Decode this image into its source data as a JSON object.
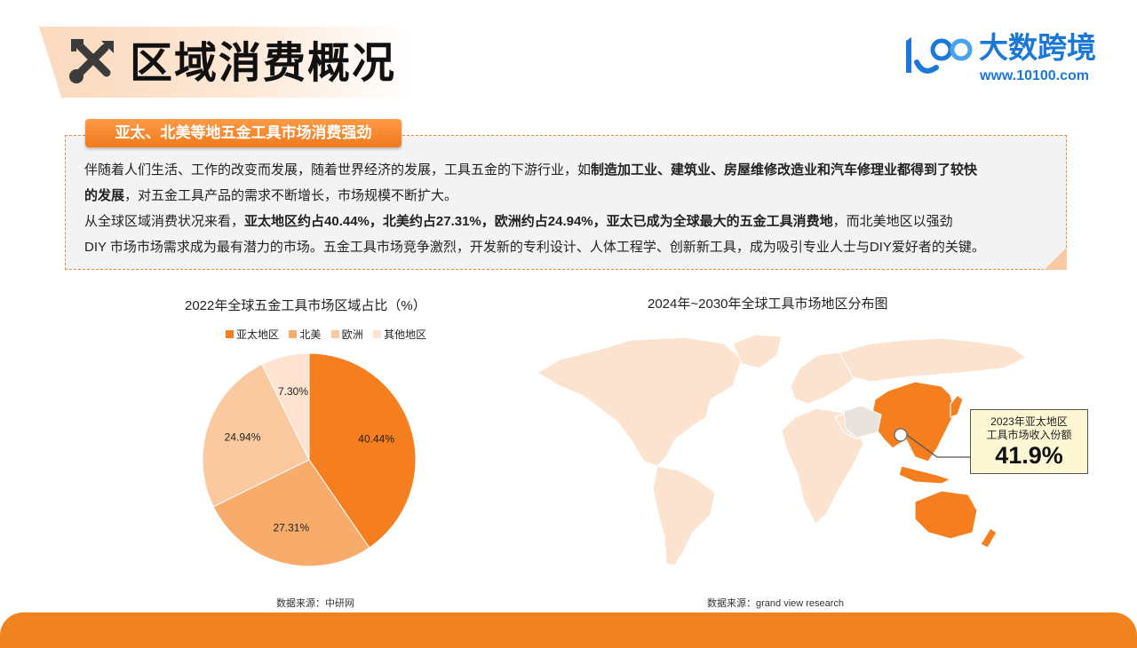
{
  "header": {
    "title": "区域消费概况",
    "icon": "tools-icon"
  },
  "logo": {
    "name": "大数跨境",
    "url": "www.10100.com",
    "brand_color": "#1b78d8"
  },
  "info_box": {
    "tag": "亚太、北美等地五金工具市场消费强劲",
    "p1_line1_a": "伴随着人们生活、工作的改变而发展，随着世界经济的发展，工具五金的下游行业，如",
    "p1_line1_b": "制造加工业、建筑业、房屋维修改造业和汽车修理业都得到了较快",
    "p1_line2_a": "的发展",
    "p1_line2_b": "，对五金工具产品的需求不断增长，市场规模不断扩大。",
    "p2_line1_a": "从全球区域消费状况来看，",
    "p2_line1_b": "亚太地区约占40.44%，北美约占27.31%，欧洲约占24.94%，亚太已成为全球最大的五金工具消费地",
    "p2_line1_c": "，而北美地区以强劲",
    "p2_line2": "DIY 市场市场需求成为最有潜力的市场。五金工具市场竞争激烈，开发新的专利设计、人体工程学、创新新工具，成为吸引专业人士与DIY爱好者的关键。"
  },
  "chart_data": [
    {
      "type": "pie",
      "title": "2022年全球五金工具市场区域占比（%）",
      "categories": [
        "亚太地区",
        "北美",
        "欧洲",
        "其他地区"
      ],
      "values": [
        40.44,
        27.31,
        24.94,
        7.3
      ],
      "labels": [
        "40.44%",
        "27.31%",
        "24.94%",
        "7.30%"
      ],
      "colors": [
        "#f57f1f",
        "#f7ac6b",
        "#fac9a0",
        "#fde3d0"
      ],
      "legend_position": "top",
      "source": "数据来源：中研网"
    },
    {
      "type": "map",
      "title": "2024年~2030年全球工具市场地区分布图",
      "highlight_region": "亚太地区",
      "highlight_color": "#f57f1f",
      "base_color": "#fbe3cf",
      "callout_label_line1": "2023年亚太地区",
      "callout_label_line2": "工具市场收入份额",
      "callout_value": "41.9%",
      "source": "数据来源：grand view research"
    }
  ]
}
